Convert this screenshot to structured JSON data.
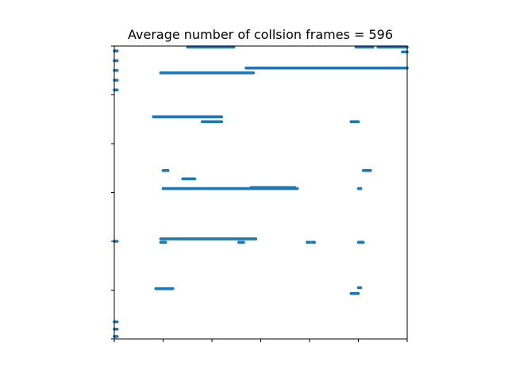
{
  "chart_data": {
    "type": "scatter",
    "title": "Average number of collsion frames = 596",
    "xlabel": "",
    "ylabel": "",
    "xlim": [
      0,
      6
    ],
    "ylim": [
      0,
      6
    ],
    "x_ticks": [
      0,
      1,
      2,
      3,
      4,
      5,
      6
    ],
    "y_ticks": [
      0,
      1,
      2,
      3,
      4,
      5,
      6
    ],
    "tick_labels_shown": false,
    "grid": false,
    "legend": "none",
    "marker_color": "#1f77b4",
    "series": [
      {
        "segments": [
          {
            "x0": 0.0,
            "x1": 0.06,
            "y": 5.1
          },
          {
            "x0": 0.0,
            "x1": 0.06,
            "y": 5.3
          },
          {
            "x0": 0.0,
            "x1": 0.06,
            "y": 5.5
          },
          {
            "x0": 0.0,
            "x1": 0.06,
            "y": 5.7
          },
          {
            "x0": 0.0,
            "x1": 0.06,
            "y": 5.9
          },
          {
            "x0": 0.0,
            "x1": 0.06,
            "y": 2.0
          },
          {
            "x0": 0.0,
            "x1": 0.06,
            "y": 0.05
          },
          {
            "x0": 0.0,
            "x1": 0.06,
            "y": 0.2
          },
          {
            "x0": 0.0,
            "x1": 0.06,
            "y": 0.35
          },
          {
            "x0": 1.5,
            "x1": 2.45,
            "y": 5.98
          },
          {
            "x0": 4.95,
            "x1": 5.3,
            "y": 5.98
          },
          {
            "x0": 5.4,
            "x1": 6.0,
            "y": 5.98
          },
          {
            "x0": 5.9,
            "x1": 6.0,
            "y": 5.88
          },
          {
            "x0": 0.95,
            "x1": 2.85,
            "y": 5.45
          },
          {
            "x0": 2.7,
            "x1": 6.0,
            "y": 5.55
          },
          {
            "x0": 0.8,
            "x1": 2.2,
            "y": 4.55
          },
          {
            "x0": 1.8,
            "x1": 2.2,
            "y": 4.45
          },
          {
            "x0": 4.85,
            "x1": 5.0,
            "y": 4.45
          },
          {
            "x0": 1.0,
            "x1": 1.1,
            "y": 3.45
          },
          {
            "x0": 5.1,
            "x1": 5.25,
            "y": 3.45
          },
          {
            "x0": 1.4,
            "x1": 1.65,
            "y": 3.28
          },
          {
            "x0": 1.0,
            "x1": 3.75,
            "y": 3.08
          },
          {
            "x0": 2.8,
            "x1": 3.7,
            "y": 3.1
          },
          {
            "x0": 5.0,
            "x1": 5.05,
            "y": 3.08
          },
          {
            "x0": 0.95,
            "x1": 2.9,
            "y": 2.05
          },
          {
            "x0": 0.95,
            "x1": 1.05,
            "y": 1.98
          },
          {
            "x0": 2.55,
            "x1": 2.65,
            "y": 1.98
          },
          {
            "x0": 3.95,
            "x1": 4.0,
            "y": 1.98
          },
          {
            "x0": 4.05,
            "x1": 4.1,
            "y": 1.98
          },
          {
            "x0": 5.0,
            "x1": 5.1,
            "y": 1.98
          },
          {
            "x0": 0.85,
            "x1": 1.2,
            "y": 1.03
          },
          {
            "x0": 4.85,
            "x1": 5.0,
            "y": 0.93
          },
          {
            "x0": 5.0,
            "x1": 5.05,
            "y": 1.05
          }
        ]
      }
    ]
  }
}
